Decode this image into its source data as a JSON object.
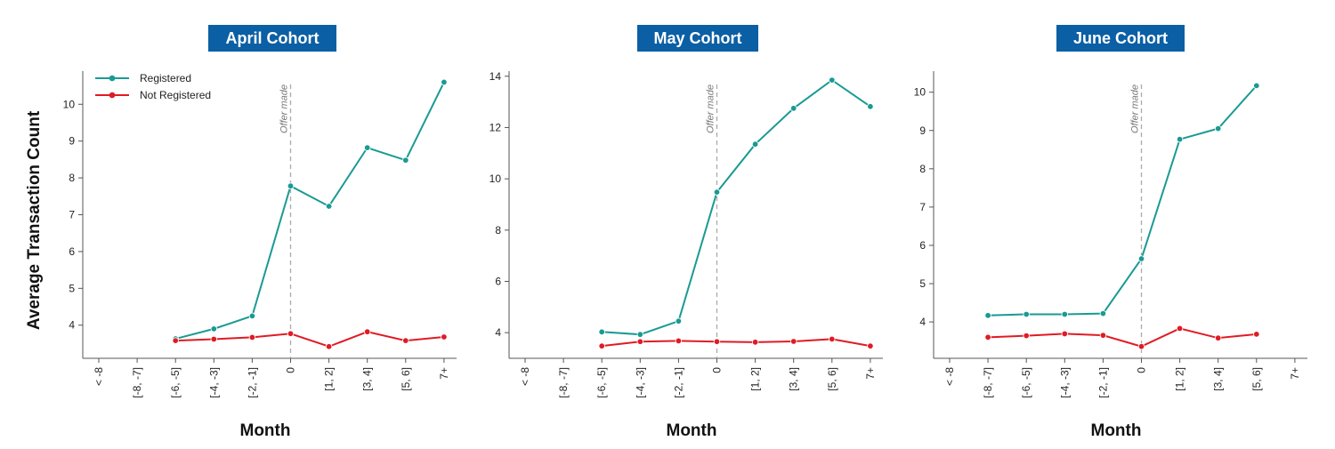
{
  "chart_data": [
    {
      "type": "line",
      "title": "April Cohort",
      "xlabel": "Month",
      "ylabel": "Average Transaction Count",
      "categories": [
        "< -8",
        "[-8, -7]",
        "[-6, -5]",
        "[-4, -3]",
        "[-2, -1]",
        "0",
        "[1, 2]",
        "[3, 4]",
        "[5, 6]",
        "7+"
      ],
      "ylim": [
        3.1,
        10.9
      ],
      "yticks": [
        4,
        5,
        6,
        7,
        8,
        9,
        10
      ],
      "annotation": {
        "category": "0",
        "text": "Offer made"
      },
      "legend": "top-left",
      "series": [
        {
          "name": "Registered",
          "color": "#1a9a93",
          "values": [
            null,
            null,
            3.63,
            3.9,
            4.25,
            7.78,
            7.23,
            8.82,
            8.48,
            10.6
          ]
        },
        {
          "name": "Not Registered",
          "color": "#e01b24",
          "values": [
            null,
            null,
            3.58,
            3.62,
            3.67,
            3.77,
            3.42,
            3.82,
            3.58,
            3.68
          ]
        }
      ]
    },
    {
      "type": "line",
      "title": "May Cohort",
      "xlabel": "Month",
      "ylabel": "",
      "categories": [
        "< -8",
        "[-8, -7]",
        "[-6, -5]",
        "[-4, -3]",
        "[-2, -1]",
        "0",
        "[1, 2]",
        "[3, 4]",
        "[5, 6]",
        "7+"
      ],
      "ylim": [
        3.0,
        14.2
      ],
      "yticks": [
        4,
        6,
        8,
        10,
        12,
        14
      ],
      "annotation": {
        "category": "0",
        "text": "Offer made"
      },
      "series": [
        {
          "name": "Registered",
          "color": "#1a9a93",
          "values": [
            null,
            null,
            4.03,
            3.93,
            4.45,
            9.48,
            11.35,
            12.75,
            13.85,
            12.82
          ]
        },
        {
          "name": "Not Registered",
          "color": "#e01b24",
          "values": [
            null,
            null,
            3.48,
            3.65,
            3.68,
            3.65,
            3.63,
            3.66,
            3.75,
            3.48
          ]
        }
      ]
    },
    {
      "type": "line",
      "title": "June Cohort",
      "xlabel": "Month",
      "ylabel": "",
      "categories": [
        "< -8",
        "[-8, -7]",
        "[-6, -5]",
        "[-4, -3]",
        "[-2, -1]",
        "0",
        "[1, 2]",
        "[3, 4]",
        "[5, 6]",
        "7+"
      ],
      "ylim": [
        3.05,
        10.55
      ],
      "yticks": [
        4,
        5,
        6,
        7,
        8,
        9,
        10
      ],
      "annotation": {
        "category": "0",
        "text": "Offer made"
      },
      "series": [
        {
          "name": "Registered",
          "color": "#1a9a93",
          "values": [
            null,
            4.17,
            4.2,
            4.2,
            4.22,
            5.65,
            8.77,
            9.05,
            10.17,
            null
          ]
        },
        {
          "name": "Not Registered",
          "color": "#e01b24",
          "values": [
            null,
            3.6,
            3.64,
            3.69,
            3.65,
            3.36,
            3.83,
            3.58,
            3.68,
            null
          ]
        }
      ]
    }
  ],
  "style": {
    "title_bg": "#0b5fa4",
    "annotation_line": "#aaaaaa"
  }
}
